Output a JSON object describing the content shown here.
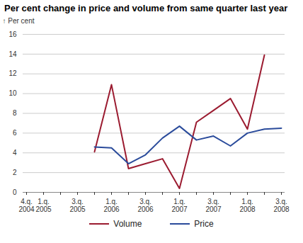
{
  "chart_data": {
    "type": "line",
    "title": "Per cent change in price and volume from same quarter last year",
    "y_label": "Per cent",
    "categories": [
      "4.q. 2004",
      "1.q. 2005",
      null,
      "3.q. 2005",
      null,
      "1.q. 2006",
      null,
      "3.q. 2006",
      null,
      "1.q. 2007",
      null,
      "3.q. 2007",
      null,
      "1.q. 2008",
      null,
      "3.q. 2008"
    ],
    "series": [
      {
        "name": "Volume",
        "color": "#9b1b30",
        "values": [
          null,
          null,
          null,
          null,
          4.1,
          10.9,
          2.4,
          2.9,
          3.4,
          0.4,
          7.1,
          8.3,
          9.5,
          6.4,
          13.9,
          null
        ]
      },
      {
        "name": "Price",
        "color": "#2a4b9b",
        "values": [
          null,
          null,
          null,
          null,
          4.6,
          4.5,
          2.9,
          3.8,
          5.5,
          6.7,
          5.3,
          5.7,
          4.7,
          6.0,
          6.4,
          6.5
        ]
      }
    ],
    "ylim": [
      0,
      16
    ],
    "yticks": [
      0,
      2,
      4,
      6,
      8,
      10,
      12,
      14,
      16
    ],
    "grid": true,
    "legend": "bottom"
  }
}
